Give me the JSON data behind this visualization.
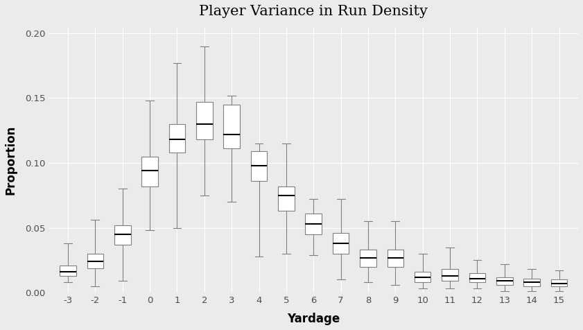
{
  "title": "Player Variance in Run Density",
  "xlabel": "Yardage",
  "ylabel": "Proportion",
  "ylim": [
    0.0,
    0.205
  ],
  "yticks": [
    0.0,
    0.05,
    0.1,
    0.15,
    0.2
  ],
  "background_color": "#EBEBEB",
  "grid_color": "#FFFFFF",
  "box_fill": "#FFFFFF",
  "box_edge": "#7F7F7F",
  "median_color": "#000000",
  "whisker_color": "#7F7F7F",
  "cap_color": "#7F7F7F",
  "tick_label_color": "#4D4D4D",
  "axis_label_color": "#000000",
  "title_color": "#000000",
  "categories": [
    -3,
    -2,
    -1,
    0,
    1,
    2,
    3,
    4,
    5,
    6,
    7,
    8,
    9,
    10,
    11,
    12,
    13,
    14,
    15
  ],
  "boxplot_stats": {
    "-3": {
      "whislo": 0.008,
      "q1": 0.013,
      "median": 0.016,
      "q3": 0.021,
      "whishi": 0.038
    },
    "-2": {
      "whislo": 0.005,
      "q1": 0.019,
      "median": 0.024,
      "q3": 0.03,
      "whishi": 0.056
    },
    "-1": {
      "whislo": 0.009,
      "q1": 0.037,
      "median": 0.045,
      "q3": 0.052,
      "whishi": 0.08
    },
    "0": {
      "whislo": 0.048,
      "q1": 0.082,
      "median": 0.094,
      "q3": 0.105,
      "whishi": 0.148
    },
    "1": {
      "whislo": 0.05,
      "q1": 0.108,
      "median": 0.118,
      "q3": 0.13,
      "whishi": 0.177
    },
    "2": {
      "whislo": 0.075,
      "q1": 0.118,
      "median": 0.13,
      "q3": 0.147,
      "whishi": 0.19
    },
    "3": {
      "whislo": 0.07,
      "q1": 0.111,
      "median": 0.122,
      "q3": 0.145,
      "whishi": 0.152
    },
    "4": {
      "whislo": 0.028,
      "q1": 0.086,
      "median": 0.098,
      "q3": 0.109,
      "whishi": 0.115
    },
    "5": {
      "whislo": 0.03,
      "q1": 0.063,
      "median": 0.075,
      "q3": 0.082,
      "whishi": 0.115
    },
    "6": {
      "whislo": 0.029,
      "q1": 0.045,
      "median": 0.053,
      "q3": 0.061,
      "whishi": 0.072
    },
    "7": {
      "whislo": 0.01,
      "q1": 0.03,
      "median": 0.038,
      "q3": 0.046,
      "whishi": 0.072
    },
    "8": {
      "whislo": 0.008,
      "q1": 0.02,
      "median": 0.027,
      "q3": 0.033,
      "whishi": 0.055
    },
    "9": {
      "whislo": 0.006,
      "q1": 0.02,
      "median": 0.027,
      "q3": 0.033,
      "whishi": 0.055
    },
    "10": {
      "whislo": 0.003,
      "q1": 0.008,
      "median": 0.012,
      "q3": 0.016,
      "whishi": 0.03
    },
    "11": {
      "whislo": 0.003,
      "q1": 0.009,
      "median": 0.013,
      "q3": 0.018,
      "whishi": 0.035
    },
    "12": {
      "whislo": 0.003,
      "q1": 0.008,
      "median": 0.011,
      "q3": 0.015,
      "whishi": 0.025
    },
    "13": {
      "whislo": 0.001,
      "q1": 0.006,
      "median": 0.009,
      "q3": 0.012,
      "whishi": 0.022
    },
    "14": {
      "whislo": 0.001,
      "q1": 0.005,
      "median": 0.008,
      "q3": 0.011,
      "whishi": 0.018
    },
    "15": {
      "whislo": 0.001,
      "q1": 0.005,
      "median": 0.007,
      "q3": 0.01,
      "whishi": 0.017
    }
  }
}
